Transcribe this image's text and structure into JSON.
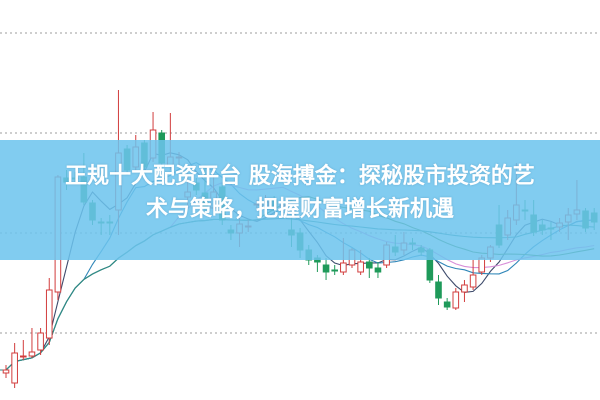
{
  "headline": {
    "line1": "正规十大配资平台 股海搏金：探秘股市投资的艺",
    "line2": "术与策略，把握财富增长新机遇"
  },
  "colors": {
    "up": "#d23c3c",
    "down": "#1f9a5a",
    "grid": "#b0b0b0",
    "banner": "#6cc4ee",
    "ma_lines": [
      "#3d4a6b",
      "#2f86b8",
      "#d88fd8",
      "#3f8a3a",
      "#2b8c8c"
    ]
  },
  "chart_data": {
    "type": "candlestick",
    "title": "",
    "xlabel": "",
    "ylabel": "",
    "grid": true,
    "gridlines": [
      100,
      200,
      300,
      400
    ],
    "ylim": [
      33,
      433
    ],
    "fields": [
      "open",
      "high",
      "low",
      "close"
    ],
    "candles": [
      [
        60,
        68,
        55,
        63
      ],
      [
        50,
        90,
        45,
        80
      ],
      [
        76,
        93,
        73,
        77
      ],
      [
        77,
        105,
        75,
        81
      ],
      [
        83,
        105,
        78,
        100
      ],
      [
        95,
        155,
        88,
        143
      ],
      [
        141,
        258,
        133,
        256
      ],
      [
        255,
        263,
        243,
        251
      ],
      [
        255,
        261,
        251,
        254
      ],
      [
        256,
        280,
        228,
        231
      ],
      [
        230,
        233,
        208,
        213
      ],
      [
        211,
        215,
        198,
        210
      ],
      [
        211,
        218,
        198,
        210
      ],
      [
        223,
        343,
        198,
        280
      ],
      [
        284,
        288,
        258,
        263
      ],
      [
        266,
        298,
        261,
        286
      ],
      [
        290,
        293,
        263,
        266
      ],
      [
        275,
        321,
        271,
        303
      ],
      [
        300,
        303,
        268,
        270
      ],
      [
        268,
        320,
        263,
        276
      ],
      [
        275,
        281,
        268,
        276
      ],
      [
        236,
        260,
        225,
        241
      ],
      [
        250,
        255,
        238,
        243
      ],
      [
        240,
        266,
        221,
        225
      ],
      [
        225,
        265,
        221,
        241
      ],
      [
        246,
        250,
        208,
        213
      ],
      [
        203,
        208,
        193,
        200
      ],
      [
        200,
        215,
        186,
        209
      ],
      [
        207,
        213,
        201,
        207
      ],
      [
        229,
        233,
        223,
        229
      ],
      [
        225,
        238,
        221,
        231
      ],
      [
        233,
        237,
        223,
        226
      ],
      [
        228,
        233,
        223,
        228
      ],
      [
        203,
        216,
        186,
        198
      ],
      [
        200,
        205,
        175,
        183
      ],
      [
        183,
        188,
        168,
        173
      ],
      [
        175,
        178,
        161,
        171
      ],
      [
        168,
        175,
        153,
        161
      ],
      [
        163,
        168,
        158,
        162
      ],
      [
        161,
        195,
        158,
        170
      ],
      [
        168,
        185,
        165,
        183
      ],
      [
        161,
        183,
        158,
        171
      ],
      [
        171,
        175,
        155,
        165
      ],
      [
        165,
        171,
        155,
        161
      ],
      [
        168,
        191,
        165,
        188
      ],
      [
        186,
        198,
        177,
        181
      ],
      [
        183,
        201,
        178,
        190
      ],
      [
        190,
        195,
        183,
        189
      ],
      [
        185,
        188,
        177,
        181
      ],
      [
        183,
        185,
        150,
        153
      ],
      [
        151,
        158,
        128,
        135
      ],
      [
        131,
        135,
        123,
        126
      ],
      [
        125,
        145,
        123,
        141
      ],
      [
        141,
        153,
        131,
        148
      ],
      [
        146,
        173,
        143,
        158
      ],
      [
        161,
        178,
        158,
        175
      ],
      [
        175,
        188,
        171,
        186
      ],
      [
        208,
        228,
        185,
        188
      ],
      [
        198,
        223,
        193,
        215
      ],
      [
        213,
        270,
        208,
        228
      ],
      [
        223,
        233,
        213,
        222
      ],
      [
        218,
        233,
        197,
        201
      ],
      [
        208,
        213,
        198,
        203
      ],
      [
        205,
        211,
        193,
        204
      ],
      [
        206,
        215,
        201,
        210
      ],
      [
        211,
        225,
        193,
        218
      ],
      [
        219,
        253,
        213,
        223
      ],
      [
        222,
        225,
        201,
        205
      ],
      [
        220,
        225,
        203,
        211
      ]
    ],
    "moving_average_count": 5
  }
}
